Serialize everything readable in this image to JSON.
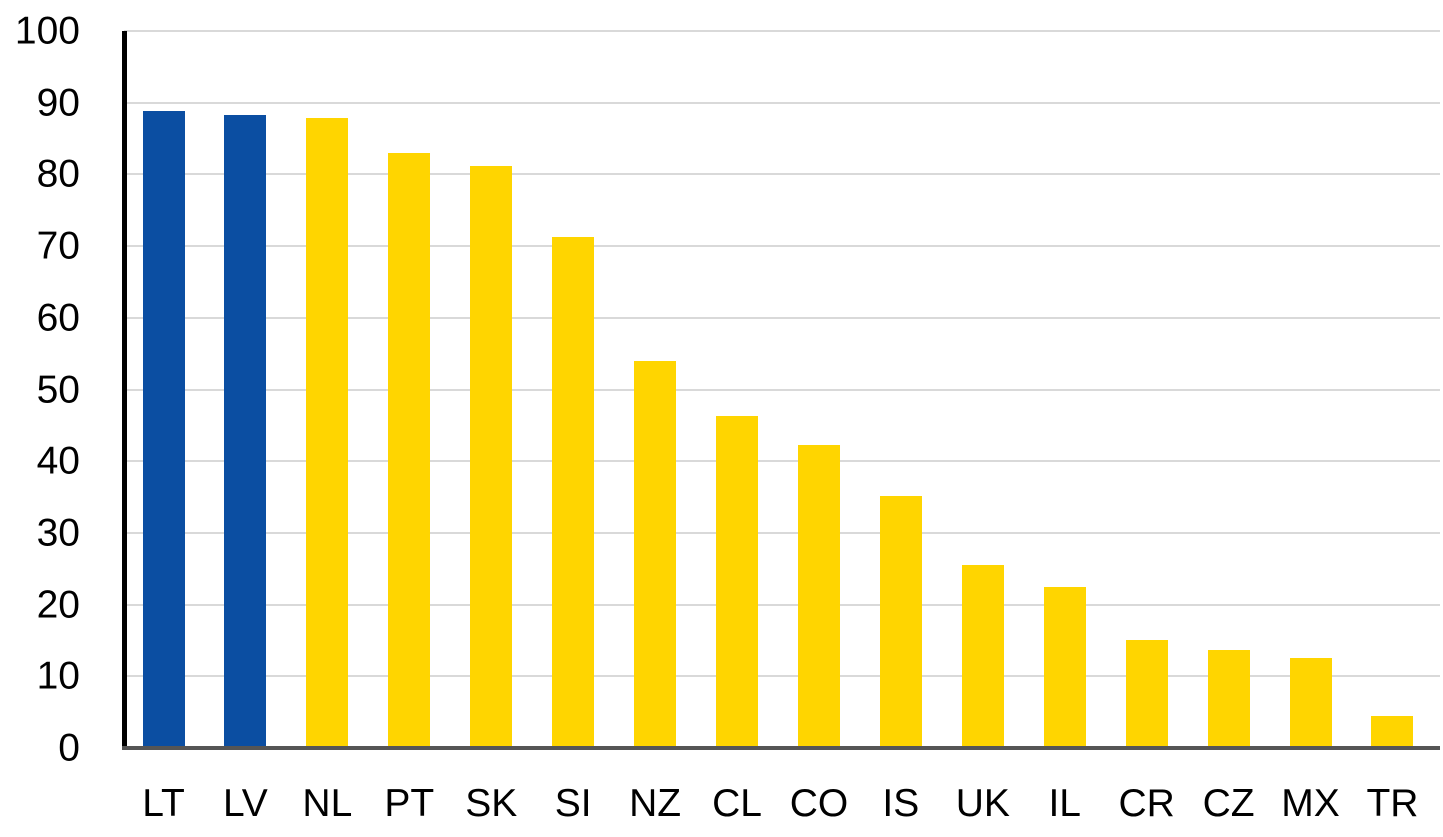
{
  "chart_data": {
    "type": "bar",
    "title": "",
    "xlabel": "",
    "ylabel": "",
    "categories": [
      "LT",
      "LV",
      "NL",
      "PT",
      "SK",
      "SI",
      "NZ",
      "CL",
      "CO",
      "IS",
      "UK",
      "IL",
      "CR",
      "CZ",
      "MX",
      "TR"
    ],
    "values": [
      88.9,
      88.3,
      87.9,
      83.0,
      81.2,
      71.2,
      54.0,
      46.3,
      42.2,
      35.2,
      25.5,
      22.5,
      15.0,
      13.6,
      12.5,
      4.5
    ],
    "highlighted_categories": [
      "LT",
      "LV"
    ],
    "highlight_color": "#0B4EA2",
    "default_color": "#FFD500",
    "ylim": [
      0,
      100
    ],
    "y_ticks": [
      0,
      10,
      20,
      30,
      40,
      50,
      60,
      70,
      80,
      90,
      100
    ],
    "y_tick_labels": [
      "0",
      "10",
      "20",
      "30",
      "40",
      "50",
      "60",
      "70",
      "80",
      "90",
      "100"
    ],
    "grid": "horizontal",
    "gridline_color": "#D9D9D9",
    "y_axis_color": "#000000",
    "baseline_color": "#555555",
    "text_color": "#000000",
    "legend": "none"
  }
}
